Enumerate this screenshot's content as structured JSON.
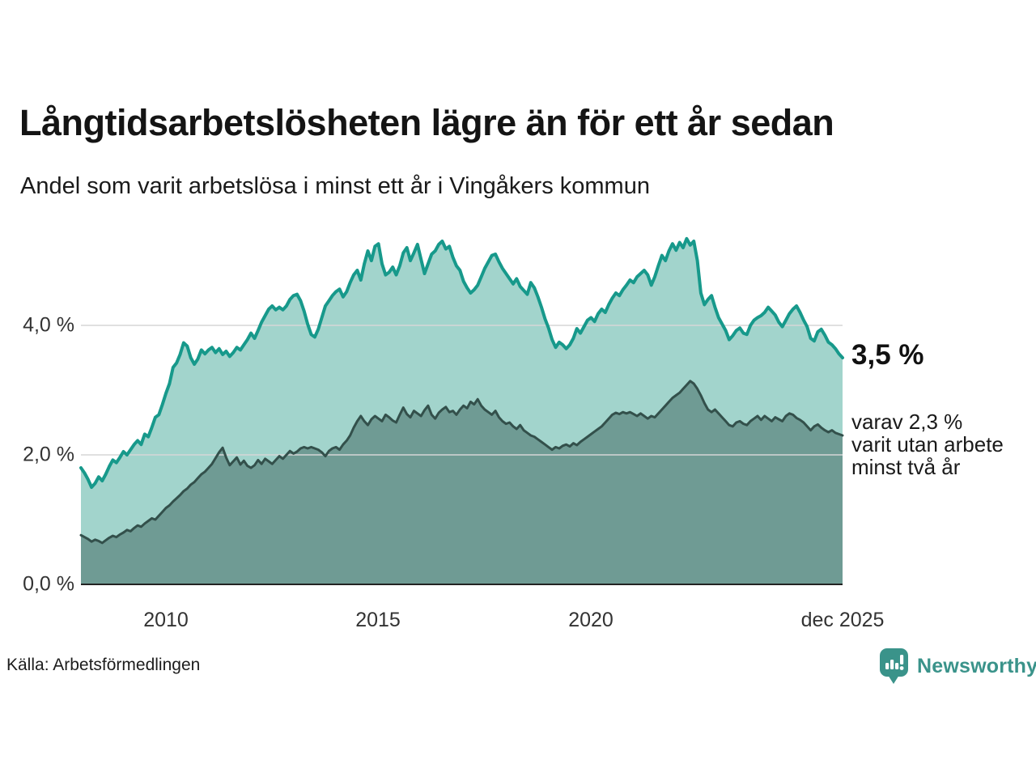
{
  "header": {
    "title": "Långtidsarbetslösheten lägre än för ett år sedan",
    "subtitle": "Andel som varit arbetslösa i minst ett år i Vingåkers kommun"
  },
  "annotations": {
    "latest_value_label": "3,5 %",
    "secondary_lines": [
      "varav 2,3 %",
      "varit utan arbete",
      "minst två år"
    ]
  },
  "footer": {
    "source": "Källa: Arbetsförmedlingen",
    "brand": "Newsworthy",
    "brand_icon": "bar-chart-speech-bubble-icon"
  },
  "colors": {
    "series1_line": "#17998B",
    "series1_fill": "#A2D4CC",
    "series2_line": "#33504B",
    "series2_fill": "#6F9B94",
    "grid": "#D6D6D6",
    "axis": "#222222",
    "brand_teal": "#3A938A",
    "text": "#1a1a1a"
  },
  "chart_data": {
    "type": "area",
    "title": "Långtidsarbetslösheten lägre än för ett år sedan",
    "subtitle": "Andel som varit arbetslösa i minst ett år i Vingåkers kommun",
    "unit": "%",
    "frequency": "monthly",
    "x_start_year": 2008,
    "x_end_label": "dec 2025",
    "ylim": [
      0,
      5.6
    ],
    "grid": true,
    "legend_position": "right-annotations",
    "y_tick_labels": [
      "4,0 %",
      "2,0 %",
      "0,0 %"
    ],
    "y_tick_values": [
      4,
      2,
      0
    ],
    "y_grid_values": [
      4,
      2
    ],
    "x_tick_labels": [
      "2010",
      "2015",
      "2020",
      "dec 2025"
    ],
    "x_tick_years": [
      2010,
      2015,
      2020,
      2025.917
    ],
    "latest": {
      "at_least_one_year_pct": 3.5,
      "at_least_two_years_pct": 2.3
    },
    "series": [
      {
        "name": "Arbetslösa minst ett år",
        "line_color": "#17998B",
        "fill_color": "#A2D4CC",
        "values": [
          1.8,
          1.72,
          1.62,
          1.5,
          1.56,
          1.66,
          1.6,
          1.7,
          1.82,
          1.92,
          1.88,
          1.96,
          2.05,
          2.0,
          2.08,
          2.16,
          2.22,
          2.16,
          2.32,
          2.28,
          2.42,
          2.58,
          2.62,
          2.78,
          2.95,
          3.1,
          3.35,
          3.42,
          3.55,
          3.73,
          3.68,
          3.5,
          3.4,
          3.48,
          3.62,
          3.56,
          3.62,
          3.66,
          3.58,
          3.64,
          3.55,
          3.6,
          3.52,
          3.58,
          3.66,
          3.62,
          3.7,
          3.78,
          3.88,
          3.8,
          3.92,
          4.05,
          4.15,
          4.25,
          4.3,
          4.24,
          4.28,
          4.24,
          4.3,
          4.4,
          4.46,
          4.48,
          4.38,
          4.22,
          4.02,
          3.86,
          3.82,
          3.94,
          4.12,
          4.3,
          4.38,
          4.46,
          4.52,
          4.56,
          4.44,
          4.52,
          4.66,
          4.78,
          4.85,
          4.7,
          4.95,
          5.15,
          5.0,
          5.22,
          5.26,
          4.95,
          4.78,
          4.82,
          4.9,
          4.78,
          4.92,
          5.12,
          5.2,
          5.0,
          5.12,
          5.25,
          5.02,
          4.8,
          4.95,
          5.1,
          5.15,
          5.25,
          5.3,
          5.18,
          5.22,
          5.05,
          4.92,
          4.85,
          4.68,
          4.58,
          4.5,
          4.55,
          4.62,
          4.75,
          4.88,
          4.98,
          5.08,
          5.1,
          4.98,
          4.88,
          4.8,
          4.72,
          4.64,
          4.72,
          4.6,
          4.54,
          4.48,
          4.66,
          4.58,
          4.44,
          4.28,
          4.1,
          3.96,
          3.78,
          3.66,
          3.74,
          3.7,
          3.64,
          3.7,
          3.8,
          3.95,
          3.88,
          3.98,
          4.08,
          4.12,
          4.06,
          4.18,
          4.25,
          4.2,
          4.32,
          4.42,
          4.5,
          4.46,
          4.55,
          4.62,
          4.7,
          4.66,
          4.75,
          4.8,
          4.85,
          4.78,
          4.62,
          4.75,
          4.92,
          5.08,
          5.0,
          5.15,
          5.26,
          5.16,
          5.28,
          5.2,
          5.34,
          5.24,
          5.3,
          5.0,
          4.5,
          4.32,
          4.4,
          4.46,
          4.28,
          4.12,
          4.02,
          3.92,
          3.78,
          3.84,
          3.92,
          3.96,
          3.88,
          3.86,
          4.0,
          4.08,
          4.12,
          4.15,
          4.2,
          4.28,
          4.22,
          4.16,
          4.05,
          3.98,
          4.08,
          4.18,
          4.25,
          4.3,
          4.2,
          4.08,
          3.98,
          3.8,
          3.76,
          3.9,
          3.94,
          3.85,
          3.74,
          3.7,
          3.64,
          3.56,
          3.5
        ]
      },
      {
        "name": "Arbetslösa minst två år",
        "line_color": "#33504B",
        "fill_color": "#6F9B94",
        "values": [
          0.76,
          0.73,
          0.7,
          0.66,
          0.69,
          0.67,
          0.64,
          0.68,
          0.72,
          0.75,
          0.73,
          0.77,
          0.8,
          0.84,
          0.82,
          0.87,
          0.91,
          0.89,
          0.94,
          0.98,
          1.02,
          1.0,
          1.06,
          1.12,
          1.18,
          1.22,
          1.28,
          1.33,
          1.38,
          1.44,
          1.48,
          1.54,
          1.58,
          1.64,
          1.7,
          1.74,
          1.8,
          1.86,
          1.95,
          2.04,
          2.11,
          1.96,
          1.84,
          1.9,
          1.96,
          1.85,
          1.91,
          1.83,
          1.8,
          1.84,
          1.92,
          1.86,
          1.94,
          1.9,
          1.86,
          1.92,
          1.98,
          1.94,
          2.0,
          2.06,
          2.02,
          2.05,
          2.1,
          2.12,
          2.1,
          2.12,
          2.1,
          2.08,
          2.04,
          1.98,
          2.06,
          2.1,
          2.12,
          2.08,
          2.16,
          2.22,
          2.3,
          2.42,
          2.52,
          2.6,
          2.52,
          2.46,
          2.55,
          2.6,
          2.56,
          2.52,
          2.62,
          2.58,
          2.53,
          2.5,
          2.62,
          2.73,
          2.63,
          2.58,
          2.68,
          2.64,
          2.6,
          2.69,
          2.76,
          2.62,
          2.56,
          2.65,
          2.7,
          2.74,
          2.66,
          2.68,
          2.62,
          2.7,
          2.76,
          2.72,
          2.82,
          2.78,
          2.86,
          2.76,
          2.7,
          2.66,
          2.62,
          2.68,
          2.58,
          2.52,
          2.48,
          2.5,
          2.44,
          2.4,
          2.46,
          2.38,
          2.34,
          2.3,
          2.28,
          2.24,
          2.2,
          2.16,
          2.12,
          2.08,
          2.12,
          2.1,
          2.14,
          2.16,
          2.13,
          2.18,
          2.15,
          2.2,
          2.24,
          2.28,
          2.32,
          2.36,
          2.4,
          2.44,
          2.5,
          2.56,
          2.62,
          2.65,
          2.63,
          2.66,
          2.64,
          2.66,
          2.63,
          2.6,
          2.64,
          2.6,
          2.56,
          2.6,
          2.58,
          2.64,
          2.7,
          2.76,
          2.82,
          2.88,
          2.92,
          2.96,
          3.02,
          3.08,
          3.14,
          3.1,
          3.02,
          2.92,
          2.8,
          2.7,
          2.66,
          2.7,
          2.64,
          2.58,
          2.52,
          2.46,
          2.44,
          2.5,
          2.52,
          2.48,
          2.46,
          2.52,
          2.56,
          2.6,
          2.54,
          2.6,
          2.56,
          2.52,
          2.58,
          2.55,
          2.52,
          2.6,
          2.64,
          2.62,
          2.57,
          2.54,
          2.5,
          2.44,
          2.38,
          2.44,
          2.47,
          2.42,
          2.38,
          2.35,
          2.38,
          2.34,
          2.32,
          2.3
        ]
      }
    ]
  }
}
